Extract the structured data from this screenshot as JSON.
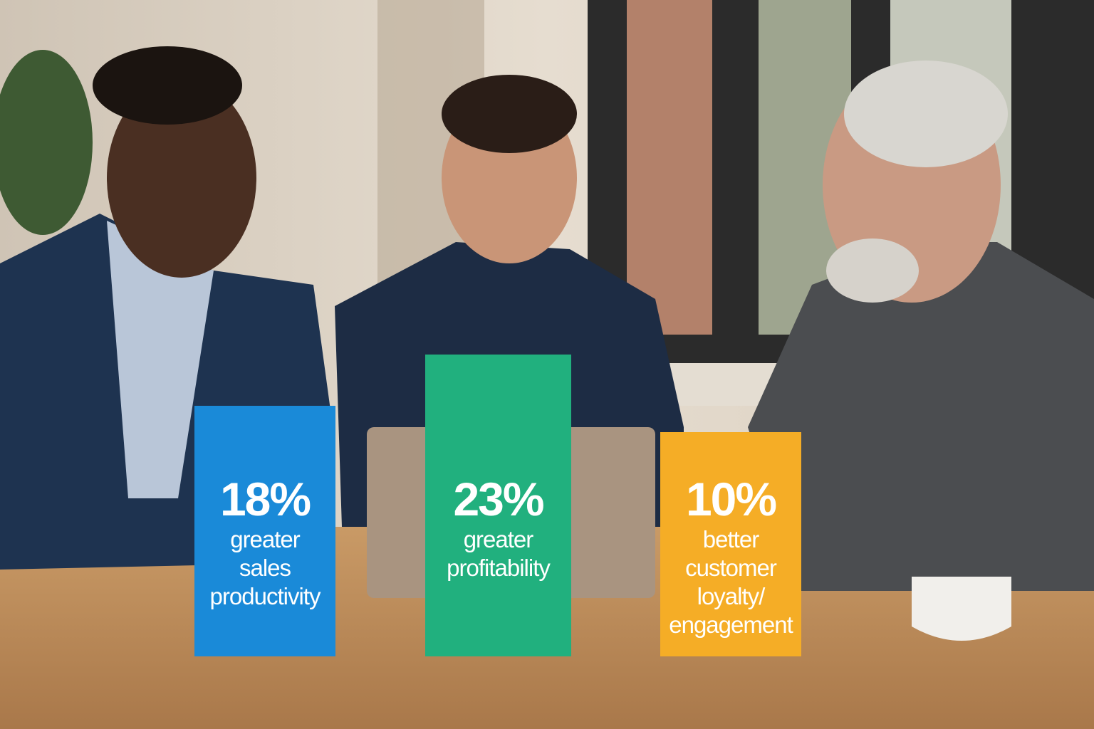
{
  "stats": [
    {
      "value": "18%",
      "label_lines": [
        "greater",
        "sales",
        "productivity"
      ],
      "color": "#1a8ad8"
    },
    {
      "value": "23%",
      "label_lines": [
        "greater",
        "profitability"
      ],
      "color": "#21b07e"
    },
    {
      "value": "10%",
      "label_lines": [
        "better",
        "customer",
        "loyalty/",
        "engagement"
      ],
      "color": "#f5ad26"
    }
  ]
}
